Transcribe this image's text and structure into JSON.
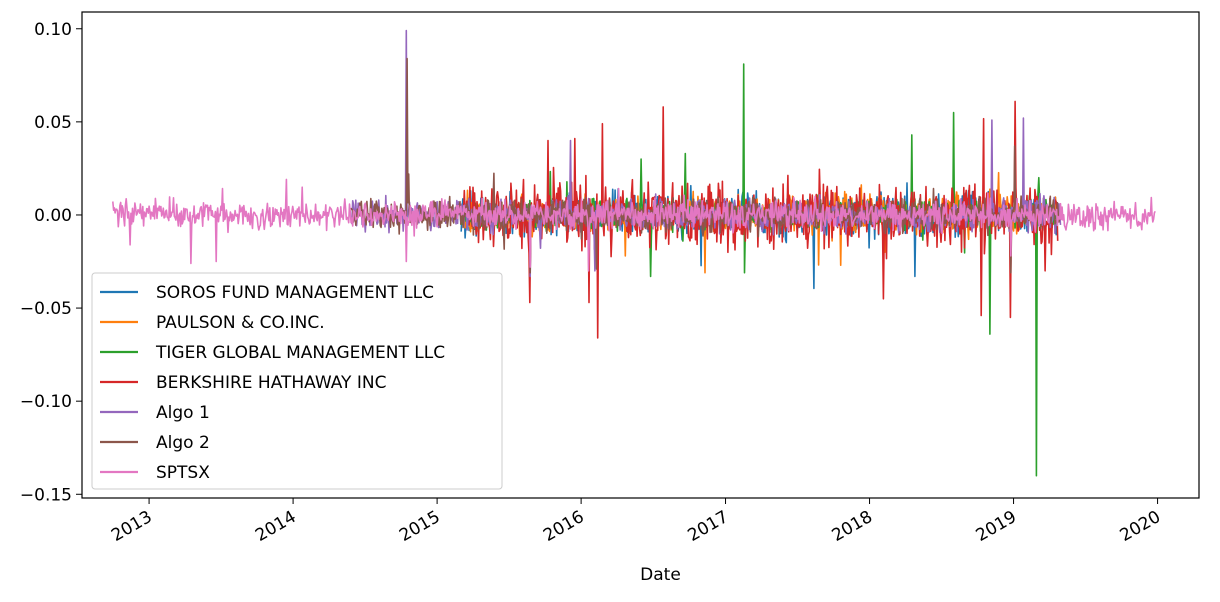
{
  "chart_data": {
    "type": "line",
    "title": "",
    "xlabel": "Date",
    "ylabel": "",
    "xlim": [
      "2012-07-15",
      "2020-04-15"
    ],
    "ylim": [
      -0.152,
      0.109
    ],
    "grid": false,
    "legend_position": "lower-left",
    "y_ticks": [
      {
        "value": 0.1,
        "label": "0.10"
      },
      {
        "value": 0.05,
        "label": "0.05"
      },
      {
        "value": 0.0,
        "label": "0.00"
      },
      {
        "value": -0.05,
        "label": "−0.05"
      },
      {
        "value": -0.1,
        "label": "−0.10"
      },
      {
        "value": -0.15,
        "label": "−0.15"
      }
    ],
    "x_ticks": [
      {
        "value": "2013-01-01",
        "label": "2013"
      },
      {
        "value": "2014-01-01",
        "label": "2014"
      },
      {
        "value": "2015-01-01",
        "label": "2015"
      },
      {
        "value": "2016-01-01",
        "label": "2016"
      },
      {
        "value": "2017-01-01",
        "label": "2017"
      },
      {
        "value": "2018-01-01",
        "label": "2018"
      },
      {
        "value": "2019-01-01",
        "label": "2019"
      },
      {
        "value": "2020-01-01",
        "label": "2020"
      }
    ],
    "series": [
      {
        "name": "SOROS FUND MANAGEMENT LLC",
        "color": "#1f77b4",
        "start": "2015-03-03",
        "end": "2019-04-23",
        "amp": 0.008,
        "spikes": [
          [
            "2015-08-24",
            -0.035
          ],
          [
            "2016-06-24",
            -0.022
          ],
          [
            "2018-02-05",
            -0.025
          ],
          [
            "2018-04-25",
            -0.033
          ],
          [
            "2018-12-24",
            -0.027
          ],
          [
            "2019-01-04",
            0.024
          ]
        ]
      },
      {
        "name": "PAULSON & CO.INC.",
        "color": "#ff7f0e",
        "start": "2015-03-03",
        "end": "2019-04-23",
        "amp": 0.007,
        "spikes": [
          [
            "2016-02-11",
            -0.025
          ],
          [
            "2016-04-21",
            -0.022
          ],
          [
            "2016-11-10",
            -0.031
          ],
          [
            "2017-09-12",
            0.012
          ],
          [
            "2017-10-20",
            -0.027
          ],
          [
            "2018-02-08",
            -0.02
          ]
        ]
      },
      {
        "name": "TIGER GLOBAL MANAGEMENT LLC",
        "color": "#2ca02c",
        "start": "2015-03-03",
        "end": "2019-04-23",
        "amp": 0.006,
        "spikes": [
          [
            "2016-06-01",
            0.03
          ],
          [
            "2016-06-24",
            -0.033
          ],
          [
            "2016-09-20",
            0.033
          ],
          [
            "2017-02-15",
            0.081
          ],
          [
            "2017-02-17",
            -0.031
          ],
          [
            "2018-04-18",
            0.043
          ],
          [
            "2018-08-01",
            0.055
          ],
          [
            "2018-11-02",
            -0.064
          ],
          [
            "2019-02-27",
            -0.14
          ],
          [
            "2019-03-05",
            0.02
          ]
        ]
      },
      {
        "name": "BERKSHIRE HATHAWAY INC",
        "color": "#d62728",
        "start": "2015-03-03",
        "end": "2019-04-23",
        "amp": 0.012,
        "spikes": [
          [
            "2015-08-24",
            -0.047
          ],
          [
            "2015-10-09",
            0.04
          ],
          [
            "2015-12-15",
            0.041
          ],
          [
            "2016-01-20",
            -0.047
          ],
          [
            "2016-02-11",
            -0.066
          ],
          [
            "2016-02-24",
            0.049
          ],
          [
            "2018-02-05",
            -0.045
          ],
          [
            "2018-10-10",
            -0.054
          ],
          [
            "2018-12-24",
            -0.055
          ],
          [
            "2019-01-04",
            0.061
          ],
          [
            "2019-03-22",
            -0.03
          ]
        ]
      },
      {
        "name": "Algo 1",
        "color": "#9467bd",
        "start": "2014-05-28",
        "end": "2019-04-30",
        "amp": 0.006,
        "spikes": [
          [
            "2014-10-15",
            0.099
          ],
          [
            "2015-08-24",
            -0.033
          ],
          [
            "2015-12-04",
            0.04
          ],
          [
            "2016-02-05",
            -0.03
          ],
          [
            "2018-11-06",
            0.051
          ],
          [
            "2019-01-25",
            0.052
          ]
        ]
      },
      {
        "name": "Algo 2",
        "color": "#8c564b",
        "start": "2014-05-28",
        "end": "2019-04-30",
        "amp": 0.006,
        "spikes": [
          [
            "2014-10-16",
            0.084
          ],
          [
            "2014-10-20",
            0.022
          ],
          [
            "2015-08-24",
            -0.031
          ],
          [
            "2016-02-09",
            -0.029
          ],
          [
            "2018-12-24",
            -0.031
          ],
          [
            "2019-01-04",
            0.037
          ]
        ]
      },
      {
        "name": "SPTSX",
        "color": "#e377c2",
        "start": "2012-10-01",
        "end": "2019-12-27",
        "amp": 0.005,
        "spikes": [
          [
            "2012-11-13",
            -0.016
          ],
          [
            "2013-04-16",
            -0.026
          ],
          [
            "2013-06-20",
            -0.025
          ],
          [
            "2014-10-15",
            -0.025
          ],
          [
            "2015-08-24",
            -0.028
          ],
          [
            "2016-01-20",
            -0.03
          ],
          [
            "2018-12-24",
            -0.022
          ]
        ]
      }
    ]
  }
}
